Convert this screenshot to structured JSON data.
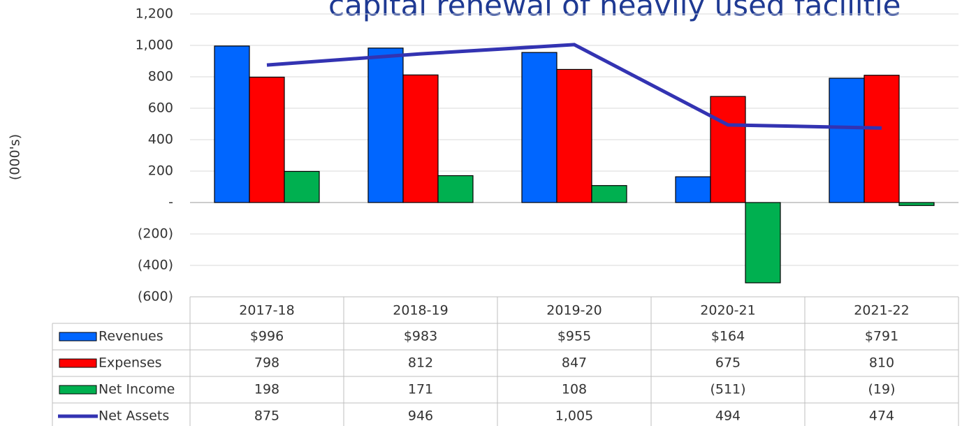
{
  "chart_data": {
    "type": "bar",
    "title": "capital renewal of heavily used facilitie",
    "y_label": "(000's)",
    "categories": [
      "2017-18",
      "2018-19",
      "2019-20",
      "2020-21",
      "2021-22"
    ],
    "series": [
      {
        "name": "Revenues",
        "type": "bar",
        "color": "#0066ff",
        "values": [
          996,
          983,
          955,
          164,
          791
        ],
        "value_labels": [
          "$996",
          "$983",
          "$955",
          "$164",
          "$791"
        ]
      },
      {
        "name": "Expenses",
        "type": "bar",
        "color": "#ff0000",
        "values": [
          798,
          812,
          847,
          675,
          810
        ],
        "value_labels": [
          "798",
          "812",
          "847",
          "675",
          "810"
        ]
      },
      {
        "name": "Net Income",
        "type": "bar",
        "color": "#00b050",
        "values": [
          198,
          171,
          108,
          -511,
          -19
        ],
        "value_labels": [
          "198",
          "171",
          "108",
          "(511)",
          "(19)"
        ]
      },
      {
        "name": "Net Assets",
        "type": "line",
        "color": "#3333b2",
        "values": [
          875,
          946,
          1005,
          494,
          474
        ],
        "value_labels": [
          "875",
          "946",
          "1,005",
          "494",
          "474"
        ]
      }
    ],
    "ylim": [
      -600,
      1200
    ],
    "yticks": [
      {
        "value": -600,
        "label": "(600)"
      },
      {
        "value": -400,
        "label": "(400)"
      },
      {
        "value": -200,
        "label": "(200)"
      },
      {
        "value": 0,
        "label": "-"
      },
      200,
      400,
      600,
      800,
      {
        "value": 1000,
        "label": "1,000"
      },
      {
        "value": 1200,
        "label": "1,200"
      }
    ],
    "grid": true
  }
}
